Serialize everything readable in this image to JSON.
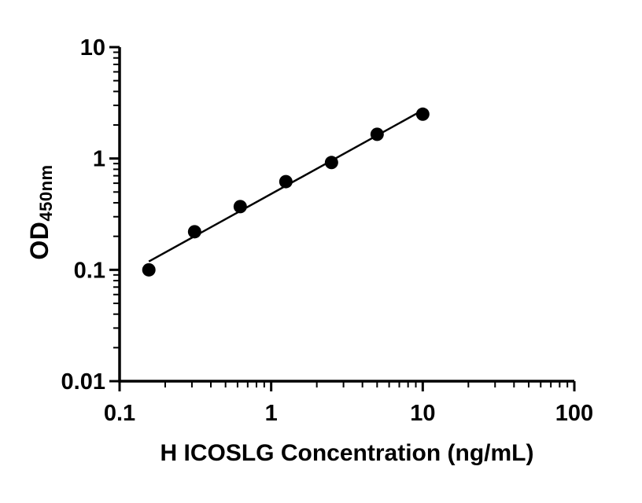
{
  "chart_data": {
    "type": "scatter",
    "title": "",
    "xlabel": "H ICOSLG Concentration (ng/mL)",
    "ylabel_main": "OD",
    "ylabel_sub": "450nm",
    "x_scale": "log10",
    "y_scale": "log10",
    "xlim": [
      0.1,
      100
    ],
    "ylim": [
      0.01,
      10
    ],
    "grid": false,
    "legend": "none",
    "axis_color": "#000000",
    "marker_color": "#000000",
    "line_color": "#000000",
    "background_color": "#ffffff",
    "x_ticks": [
      {
        "value": 0.1,
        "label": "0.1"
      },
      {
        "value": 1,
        "label": "1"
      },
      {
        "value": 10,
        "label": "10"
      },
      {
        "value": 100,
        "label": "100"
      }
    ],
    "y_ticks": [
      {
        "value": 0.01,
        "label": "0.01"
      },
      {
        "value": 0.1,
        "label": "0.1"
      },
      {
        "value": 1,
        "label": "1"
      },
      {
        "value": 10,
        "label": "10"
      }
    ],
    "fit": "linear regression in log-log space drawn from first to last point",
    "points": [
      {
        "x": 0.156,
        "y": 0.1
      },
      {
        "x": 0.3125,
        "y": 0.22
      },
      {
        "x": 0.625,
        "y": 0.37
      },
      {
        "x": 1.25,
        "y": 0.62
      },
      {
        "x": 2.5,
        "y": 0.92
      },
      {
        "x": 5,
        "y": 1.65
      },
      {
        "x": 10,
        "y": 2.5
      }
    ]
  }
}
